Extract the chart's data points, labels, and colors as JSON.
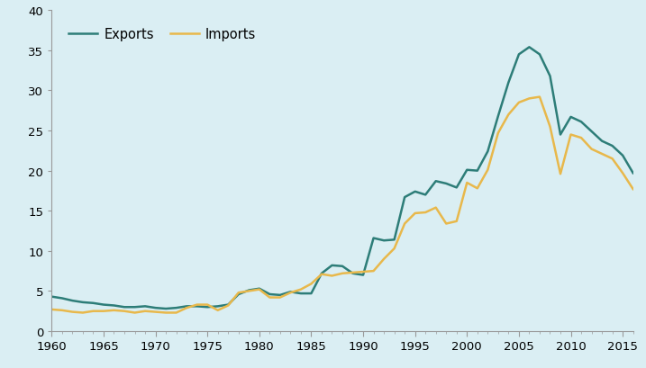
{
  "exports": {
    "years": [
      1960,
      1961,
      1962,
      1963,
      1964,
      1965,
      1966,
      1967,
      1968,
      1969,
      1970,
      1971,
      1972,
      1973,
      1974,
      1975,
      1976,
      1977,
      1978,
      1979,
      1980,
      1981,
      1982,
      1983,
      1984,
      1985,
      1986,
      1987,
      1988,
      1989,
      1990,
      1991,
      1992,
      1993,
      1994,
      1995,
      1996,
      1997,
      1998,
      1999,
      2000,
      2001,
      2002,
      2003,
      2004,
      2005,
      2006,
      2007,
      2008,
      2009,
      2010,
      2011,
      2012,
      2013,
      2014,
      2015,
      2016
    ],
    "values": [
      4.3,
      4.1,
      3.8,
      3.6,
      3.5,
      3.3,
      3.2,
      3.0,
      3.0,
      3.1,
      2.9,
      2.8,
      2.9,
      3.1,
      3.1,
      3.0,
      3.1,
      3.3,
      4.6,
      5.1,
      5.3,
      4.6,
      4.5,
      4.9,
      4.7,
      4.7,
      7.2,
      8.2,
      8.1,
      7.2,
      7.0,
      11.6,
      11.3,
      11.4,
      16.7,
      17.4,
      17.0,
      18.7,
      18.4,
      17.9,
      20.1,
      20.0,
      22.4,
      26.8,
      31.0,
      34.5,
      35.4,
      34.5,
      31.8,
      24.5,
      26.7,
      26.1,
      24.9,
      23.7,
      23.1,
      21.9,
      19.7
    ]
  },
  "imports": {
    "years": [
      1960,
      1961,
      1962,
      1963,
      1964,
      1965,
      1966,
      1967,
      1968,
      1969,
      1970,
      1971,
      1972,
      1973,
      1974,
      1975,
      1976,
      1977,
      1978,
      1979,
      1980,
      1981,
      1982,
      1983,
      1984,
      1985,
      1986,
      1987,
      1988,
      1989,
      1990,
      1991,
      1992,
      1993,
      1994,
      1995,
      1996,
      1997,
      1998,
      1999,
      2000,
      2001,
      2002,
      2003,
      2004,
      2005,
      2006,
      2007,
      2008,
      2009,
      2010,
      2011,
      2012,
      2013,
      2014,
      2015,
      2016
    ],
    "values": [
      2.7,
      2.6,
      2.4,
      2.3,
      2.5,
      2.5,
      2.6,
      2.5,
      2.3,
      2.5,
      2.4,
      2.3,
      2.3,
      2.9,
      3.3,
      3.3,
      2.6,
      3.2,
      4.8,
      5.0,
      5.2,
      4.2,
      4.2,
      4.8,
      5.2,
      5.9,
      7.1,
      6.9,
      7.2,
      7.3,
      7.4,
      7.5,
      9.0,
      10.3,
      13.4,
      14.7,
      14.8,
      15.4,
      13.4,
      13.7,
      18.5,
      17.8,
      20.1,
      24.7,
      27.0,
      28.5,
      29.0,
      29.2,
      25.5,
      19.6,
      24.5,
      24.1,
      22.7,
      22.1,
      21.5,
      19.7,
      17.7
    ]
  },
  "exports_color": "#2d7d78",
  "imports_color": "#e8b84b",
  "background_color": "#daeef3",
  "line_width": 1.8,
  "xlim": [
    1960,
    2016
  ],
  "ylim": [
    0,
    40
  ],
  "yticks": [
    0,
    5,
    10,
    15,
    20,
    25,
    30,
    35,
    40
  ],
  "xticks": [
    1960,
    1965,
    1970,
    1975,
    1980,
    1985,
    1990,
    1995,
    2000,
    2005,
    2010,
    2015
  ],
  "legend_labels": [
    "Exports",
    "Imports"
  ],
  "legend_loc": "upper left",
  "tick_color": "#999999",
  "label_fontsize": 9.5
}
